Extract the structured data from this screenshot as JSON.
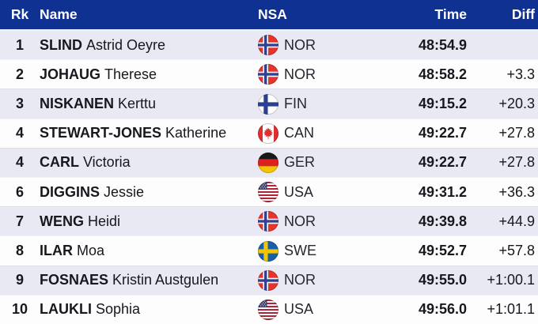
{
  "colors": {
    "header_bg": "#0e3192",
    "header_text": "#ffffff",
    "row_bg": "#fdfdfe",
    "row_alt_bg": "#e8e9f2",
    "text": "#17171d",
    "flags": {
      "nor_red": "#e5332e",
      "nor_navy": "#32418e",
      "fin_blue": "#2b4093",
      "swe_blue": "#1560a8",
      "swe_yellow": "#f5c402",
      "ger_black": "#1a1a1a",
      "ger_red": "#dd2020",
      "ger_gold": "#f2c500",
      "can_red": "#e02f2f",
      "usa_red": "#b22234",
      "usa_blue": "#3a3b6d"
    }
  },
  "header": {
    "rk": "Rk",
    "name": "Name",
    "nsa": "NSA",
    "time": "Time",
    "diff": "Diff"
  },
  "rows": [
    {
      "rank": "1",
      "surname": "SLIND",
      "given": "Astrid Oeyre",
      "nsa": "NOR",
      "time": "48:54.9",
      "diff": ""
    },
    {
      "rank": "2",
      "surname": "JOHAUG",
      "given": "Therese",
      "nsa": "NOR",
      "time": "48:58.2",
      "diff": "+3.3"
    },
    {
      "rank": "3",
      "surname": "NISKANEN",
      "given": "Kerttu",
      "nsa": "FIN",
      "time": "49:15.2",
      "diff": "+20.3"
    },
    {
      "rank": "4",
      "surname": "STEWART-JONES",
      "given": "Katherine",
      "nsa": "CAN",
      "time": "49:22.7",
      "diff": "+27.8"
    },
    {
      "rank": "4",
      "surname": "CARL",
      "given": "Victoria",
      "nsa": "GER",
      "time": "49:22.7",
      "diff": "+27.8"
    },
    {
      "rank": "6",
      "surname": "DIGGINS",
      "given": "Jessie",
      "nsa": "USA",
      "time": "49:31.2",
      "diff": "+36.3"
    },
    {
      "rank": "7",
      "surname": "WENG",
      "given": "Heidi",
      "nsa": "NOR",
      "time": "49:39.8",
      "diff": "+44.9"
    },
    {
      "rank": "8",
      "surname": "ILAR",
      "given": "Moa",
      "nsa": "SWE",
      "time": "49:52.7",
      "diff": "+57.8"
    },
    {
      "rank": "9",
      "surname": "FOSNAES",
      "given": "Kristin Austgulen",
      "nsa": "NOR",
      "time": "49:55.0",
      "diff": "+1:00.1"
    },
    {
      "rank": "10",
      "surname": "LAUKLI",
      "given": "Sophia",
      "nsa": "USA",
      "time": "49:56.0",
      "diff": "+1:01.1"
    }
  ]
}
